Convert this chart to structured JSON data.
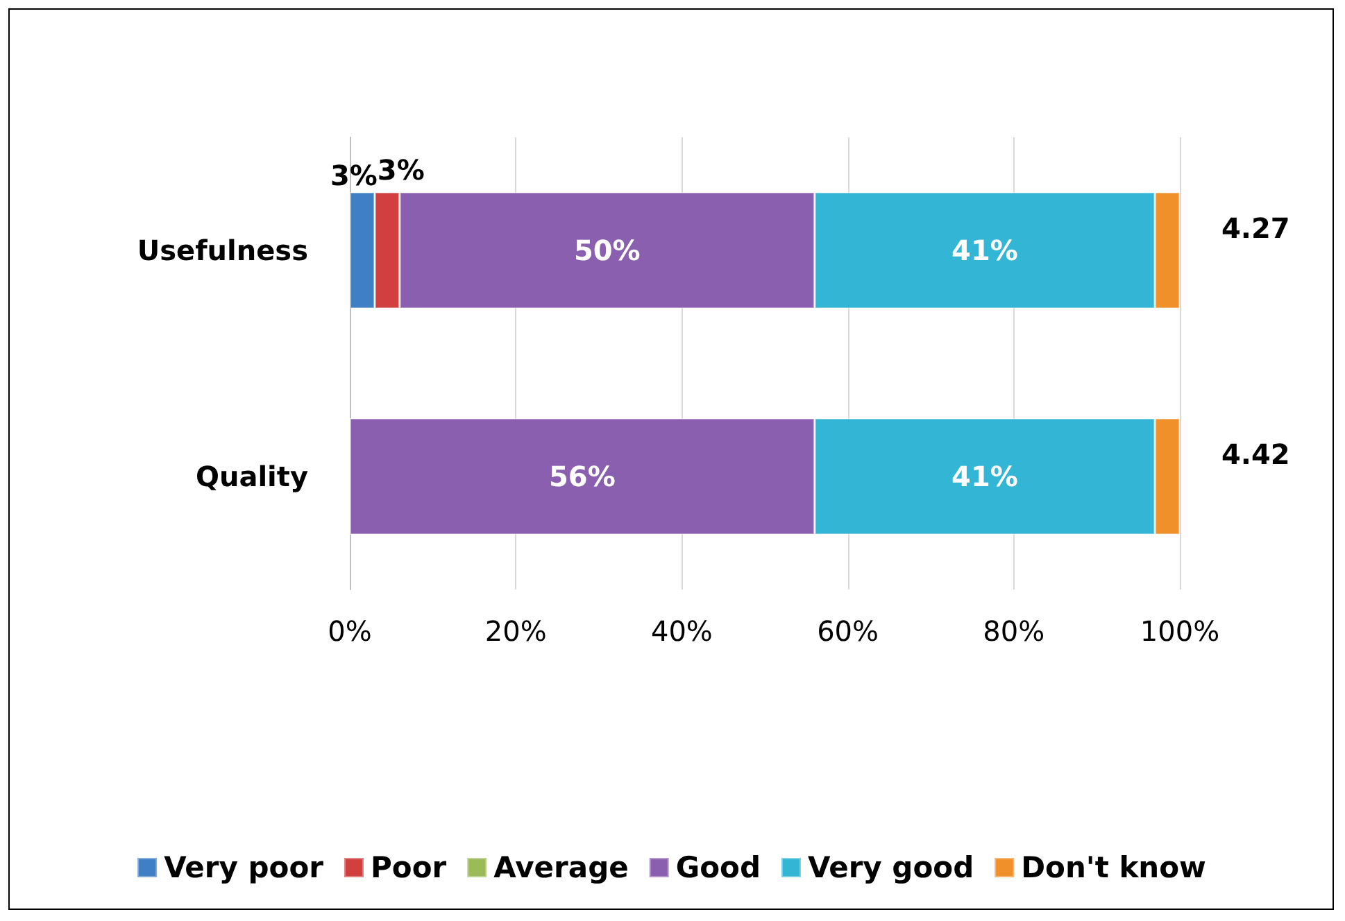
{
  "chart_data": {
    "type": "bar",
    "orientation": "horizontal",
    "stacked": true,
    "categories": [
      "Usefulness",
      "Quality"
    ],
    "series": [
      {
        "name": "Very poor",
        "color": "#3f7fc4",
        "values": [
          3,
          0
        ],
        "value_labels": [
          "3%",
          null
        ]
      },
      {
        "name": "Poor",
        "color": "#d13f3f",
        "values": [
          3,
          0
        ],
        "value_labels": [
          "3%",
          null
        ]
      },
      {
        "name": "Average",
        "color": "#9bbb59",
        "values": [
          0,
          0
        ],
        "value_labels": [
          null,
          null
        ]
      },
      {
        "name": "Good",
        "color": "#8a5fb0",
        "values": [
          50,
          56
        ],
        "value_labels": [
          "50%",
          "56%"
        ]
      },
      {
        "name": "Very good",
        "color": "#33b5d6",
        "values": [
          41,
          41
        ],
        "value_labels": [
          "41%",
          "41%"
        ]
      },
      {
        "name": "Don't know",
        "color": "#f0902a",
        "values": [
          3,
          3
        ],
        "value_labels": [
          null,
          null
        ]
      }
    ],
    "xlim": [
      0,
      100
    ],
    "xticks": [
      {
        "value": 0,
        "label": "0%"
      },
      {
        "value": 20,
        "label": "20%"
      },
      {
        "value": 40,
        "label": "40%"
      },
      {
        "value": 60,
        "label": "60%"
      },
      {
        "value": 80,
        "label": "80%"
      },
      {
        "value": 100,
        "label": "100%"
      }
    ],
    "grid": "x",
    "legend": "bottom",
    "annotations": [
      "4.27",
      "4.42"
    ]
  }
}
